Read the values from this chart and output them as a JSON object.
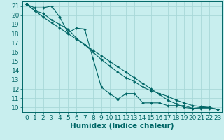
{
  "xlabel": "Humidex (Indice chaleur)",
  "bg_color": "#c8eeee",
  "grid_color": "#a8d8d8",
  "line_color": "#006666",
  "xlim": [
    -0.5,
    23.5
  ],
  "ylim": [
    9.5,
    21.5
  ],
  "xticks": [
    0,
    1,
    2,
    3,
    4,
    5,
    6,
    7,
    8,
    9,
    10,
    11,
    12,
    13,
    14,
    15,
    16,
    17,
    18,
    19,
    20,
    21,
    22,
    23
  ],
  "yticks": [
    10,
    11,
    12,
    13,
    14,
    15,
    16,
    17,
    18,
    19,
    20,
    21
  ],
  "line1_x": [
    0,
    1,
    2,
    3,
    4,
    5,
    6,
    7,
    8,
    9,
    10,
    11,
    12,
    13,
    14,
    15,
    16,
    17,
    18,
    19,
    20,
    21,
    22,
    23
  ],
  "line1_y": [
    21.2,
    20.8,
    20.8,
    21.0,
    19.8,
    18.1,
    18.6,
    18.5,
    15.3,
    12.2,
    11.5,
    10.9,
    11.5,
    11.5,
    10.5,
    10.5,
    10.5,
    10.2,
    10.2,
    10.2,
    9.9,
    10.0,
    10.0,
    9.8
  ],
  "line2_x": [
    0,
    1,
    2,
    3,
    4,
    5,
    6,
    7,
    8,
    9,
    10,
    11,
    12,
    13,
    14,
    15,
    16,
    17,
    18,
    19,
    20,
    21,
    22,
    23
  ],
  "line2_y": [
    21.2,
    20.5,
    20.2,
    19.5,
    19.0,
    18.5,
    17.5,
    16.8,
    16.0,
    15.2,
    14.5,
    13.8,
    13.2,
    12.8,
    12.2,
    11.8,
    11.5,
    11.2,
    10.8,
    10.5,
    10.2,
    10.1,
    10.0,
    9.8
  ],
  "line3_x": [
    0,
    1,
    2,
    3,
    4,
    5,
    6,
    7,
    8,
    9,
    10,
    11,
    12,
    13,
    14,
    15,
    16,
    17,
    18,
    19,
    20,
    21,
    22,
    23
  ],
  "line3_y": [
    21.2,
    20.5,
    19.8,
    19.2,
    18.6,
    18.0,
    17.4,
    16.8,
    16.2,
    15.6,
    15.0,
    14.4,
    13.8,
    13.2,
    12.6,
    12.0,
    11.4,
    10.8,
    10.4,
    10.0,
    9.9,
    9.9,
    9.9,
    9.8
  ],
  "tick_fontsize": 6.5,
  "xlabel_fontsize": 7.5
}
